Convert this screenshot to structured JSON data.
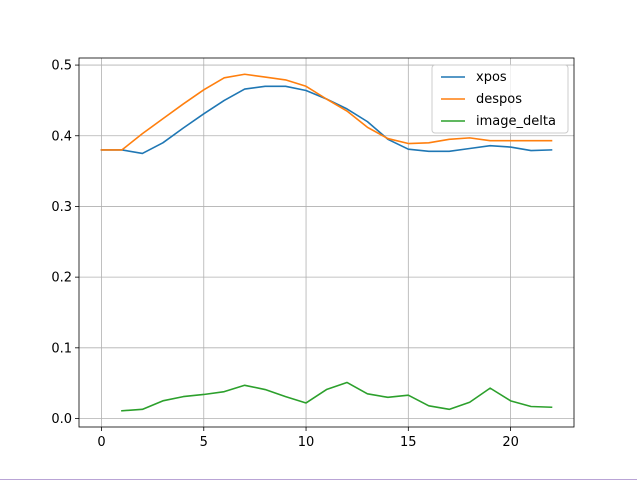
{
  "chart_data": {
    "type": "line",
    "title": "",
    "xlabel": "",
    "ylabel": "",
    "xlim": [
      -1.1,
      23.1
    ],
    "ylim": [
      -0.012,
      0.51
    ],
    "xticks": [
      0,
      5,
      10,
      15,
      20
    ],
    "yticks": [
      0.0,
      0.1,
      0.2,
      0.3,
      0.4,
      0.5
    ],
    "xtick_labels": [
      "0",
      "5",
      "10",
      "15",
      "20"
    ],
    "ytick_labels": [
      "0.0",
      "0.1",
      "0.2",
      "0.3",
      "0.4",
      "0.5"
    ],
    "grid": true,
    "legend_position": "upper right",
    "series": [
      {
        "name": "xpos",
        "color": "#1f77b4",
        "x": [
          0,
          1,
          2,
          3,
          4,
          5,
          6,
          7,
          8,
          9,
          10,
          11,
          12,
          13,
          14,
          15,
          16,
          17,
          18,
          19,
          20,
          21,
          22
        ],
        "y": [
          0.38,
          0.38,
          0.375,
          0.39,
          0.411,
          0.431,
          0.45,
          0.466,
          0.47,
          0.47,
          0.464,
          0.452,
          0.438,
          0.42,
          0.395,
          0.381,
          0.378,
          0.378,
          0.382,
          0.386,
          0.384,
          0.379,
          0.38
        ]
      },
      {
        "name": "despos",
        "color": "#ff7f0e",
        "x": [
          0,
          1,
          2,
          3,
          4,
          5,
          6,
          7,
          8,
          9,
          10,
          11,
          12,
          13,
          14,
          15,
          16,
          17,
          18,
          19,
          20,
          21,
          22
        ],
        "y": [
          0.38,
          0.38,
          0.403,
          0.424,
          0.445,
          0.465,
          0.482,
          0.487,
          0.483,
          0.479,
          0.47,
          0.452,
          0.435,
          0.412,
          0.396,
          0.389,
          0.39,
          0.395,
          0.397,
          0.393,
          0.393,
          0.393,
          0.393
        ]
      },
      {
        "name": "image_delta",
        "color": "#2ca02c",
        "x": [
          1,
          2,
          3,
          4,
          5,
          6,
          7,
          8,
          9,
          10,
          11,
          12,
          13,
          14,
          15,
          16,
          17,
          18,
          19,
          20,
          21,
          22
        ],
        "y": [
          0.011,
          0.013,
          0.025,
          0.031,
          0.034,
          0.038,
          0.047,
          0.041,
          0.031,
          0.022,
          0.041,
          0.051,
          0.035,
          0.03,
          0.033,
          0.018,
          0.013,
          0.023,
          0.043,
          0.025,
          0.017,
          0.016
        ]
      }
    ]
  }
}
